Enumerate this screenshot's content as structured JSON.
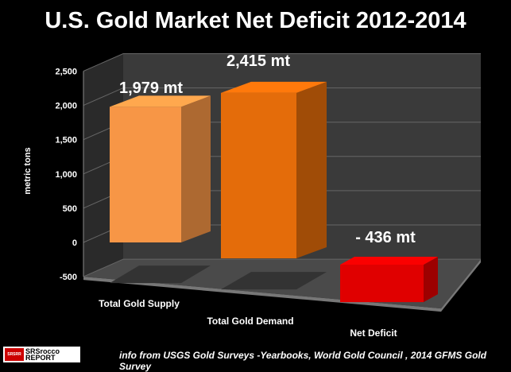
{
  "chart_data": {
    "type": "bar",
    "title": "U.S. Gold Market Net Deficit 2012-2014",
    "xlabel": "",
    "ylabel": "metric tons",
    "ylim": [
      -500,
      2500
    ],
    "yticks": [
      "2,500",
      "2,000",
      "1,500",
      "1,000",
      "500",
      "0",
      "-500"
    ],
    "ytick_values": [
      2500,
      2000,
      1500,
      1000,
      500,
      0,
      -500
    ],
    "categories": [
      "Total Gold Supply",
      "Total Gold Demand",
      "Net Deficit"
    ],
    "values": [
      1979,
      2415,
      -436
    ],
    "data_labels": [
      "1,979 mt",
      "2,415 mt",
      "- 436 mt"
    ],
    "colors": [
      "#f79646",
      "#e46c0a",
      "#e00000"
    ],
    "grid": true,
    "legend": "none"
  },
  "source": "info from USGS Gold Surveys -Yearbooks, World Gold Council , 2014 GFMS Gold Survey",
  "logo": {
    "top": "SRSrocco",
    "bottom": "REPORT",
    "flag": "SRSRR"
  }
}
